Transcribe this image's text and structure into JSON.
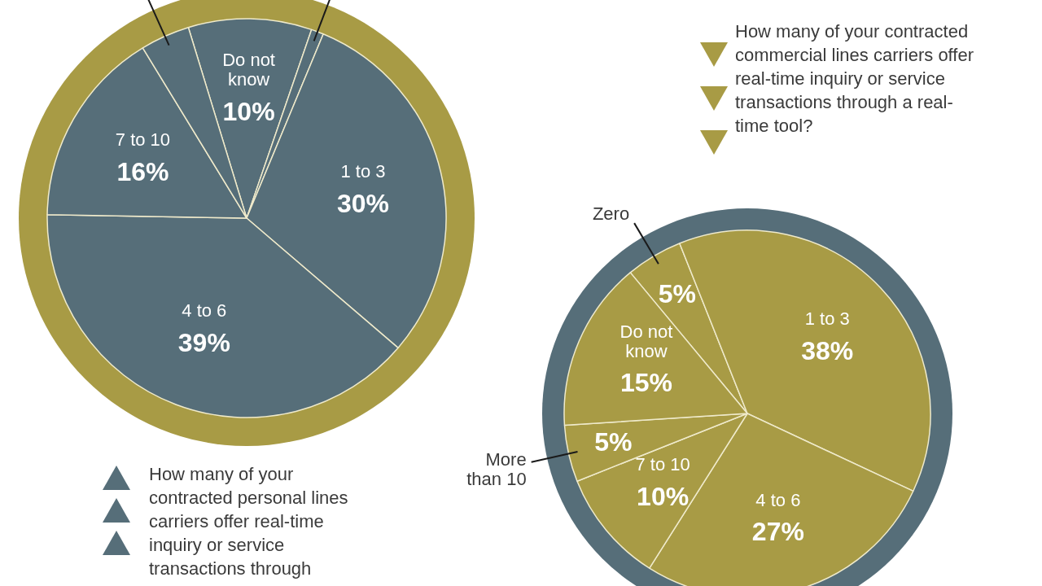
{
  "chart_data": [
    {
      "type": "pie",
      "title": "How many of your contracted personal lines carriers offer real-time inquiry or service transactions through",
      "categories": [
        "Do not know",
        null,
        "1 to 3",
        "4 to 6",
        "7 to 10",
        null
      ],
      "values": [
        10,
        1,
        30,
        39,
        16,
        4
      ],
      "value_labels": [
        "10%",
        null,
        "30%",
        "39%",
        "16%",
        null
      ],
      "colors": [
        "#566e79",
        "#566e79",
        "#566e79",
        "#566e79",
        "#566e79",
        "#566e79"
      ],
      "legend": false
    },
    {
      "type": "pie",
      "title": "How many of your contracted commercial lines carriers offer real-time inquiry or service transactions through a real-time tool?",
      "categories": [
        "Zero",
        "1 to 3",
        "4 to 6",
        "7 to 10",
        "More than 10",
        "Do not know"
      ],
      "values": [
        5,
        38,
        27,
        10,
        5,
        15
      ],
      "value_labels": [
        "5%",
        "38%",
        "27%",
        "10%",
        "5%",
        "15%"
      ],
      "colors": [
        "#a89b45",
        "#a89b45",
        "#a89b45",
        "#a89b45",
        "#a89b45",
        "#a89b45"
      ],
      "legend": false
    }
  ]
}
